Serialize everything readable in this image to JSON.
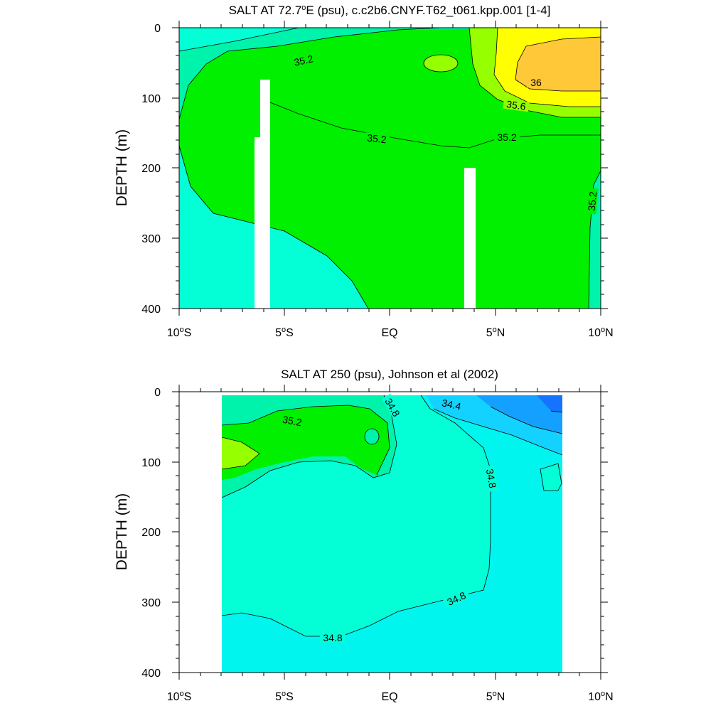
{
  "chart_data": [
    {
      "type": "contour",
      "title": "SALT AT  72.7°E (psu), c.c2b6.CNYF.T62_t061.kpp.001 [1-4]",
      "title_main": "SALT AT  72.7",
      "title_deg": "o",
      "title_rest": "E (psu), c.c2b6.CNYF.T62_t061.kpp.001 [1-4]",
      "ylabel": "DEPTH (m)",
      "x_ticks": [
        {
          "pre": "10",
          "sup": "o",
          "post": "S"
        },
        {
          "pre": "5",
          "sup": "o",
          "post": "S"
        },
        {
          "pre": "EQ",
          "sup": "",
          "post": ""
        },
        {
          "pre": "5",
          "sup": "o",
          "post": "N"
        },
        {
          "pre": "10",
          "sup": "o",
          "post": "N"
        }
      ],
      "y_ticks": [
        "0",
        "100",
        "200",
        "300",
        "400"
      ],
      "xlim": [
        -10,
        10
      ],
      "ylim": [
        400,
        0
      ],
      "contour_labels": [
        "35.2",
        "36",
        "35.6",
        "35.2",
        "35.2",
        "35.2"
      ]
    },
    {
      "type": "contour",
      "title": "SALT AT 250 (psu), Johnson et al (2002)",
      "ylabel": "DEPTH (m)",
      "x_ticks": [
        {
          "pre": "10",
          "sup": "o",
          "post": "S"
        },
        {
          "pre": "5",
          "sup": "o",
          "post": "S"
        },
        {
          "pre": "EQ",
          "sup": "",
          "post": ""
        },
        {
          "pre": "5",
          "sup": "o",
          "post": "N"
        },
        {
          "pre": "10",
          "sup": "o",
          "post": "N"
        }
      ],
      "y_ticks": [
        "0",
        "100",
        "200",
        "300",
        "400"
      ],
      "xlim": [
        -10,
        10
      ],
      "ylim": [
        400,
        0
      ],
      "contour_labels": [
        "34.8",
        "34.4",
        "35.2",
        "34.8",
        "34.8",
        "34.8"
      ]
    }
  ],
  "colors": {
    "fill_34_0": "#1673ff",
    "fill_34_2": "#14a0ff",
    "fill_34_4": "#14d2ff",
    "fill_34_6": "#00f5ee",
    "fill_34_8": "#04ffd6",
    "fill_35_0": "#00f3aa",
    "fill_35_2": "#00f000",
    "fill_35_4": "#96ff00",
    "fill_35_8": "#ffff00",
    "fill_36_0": "#ffc838",
    "mask": "#ffffff"
  }
}
